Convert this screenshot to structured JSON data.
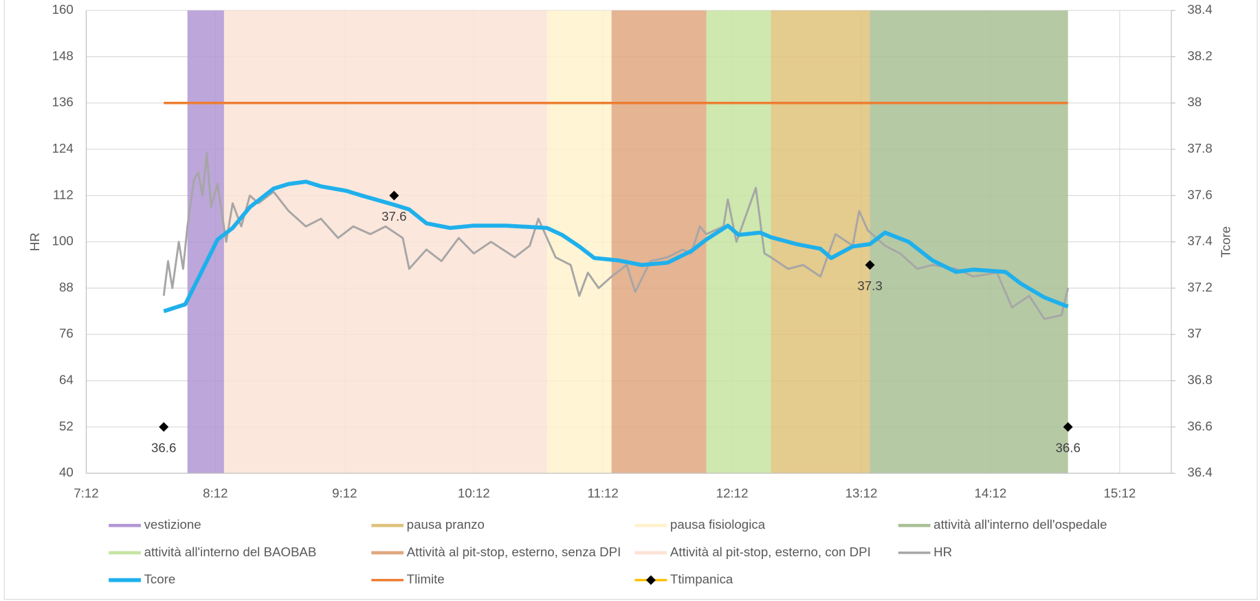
{
  "chart_data": {
    "type": "line",
    "xlim": [
      432,
      936
    ],
    "xticks": [
      {
        "value": 432,
        "label": "7:12"
      },
      {
        "value": 492,
        "label": "8:12"
      },
      {
        "value": 552,
        "label": "9:12"
      },
      {
        "value": 612,
        "label": "10:12"
      },
      {
        "value": 672,
        "label": "11:12"
      },
      {
        "value": 732,
        "label": "12:12"
      },
      {
        "value": 792,
        "label": "13:12"
      },
      {
        "value": 852,
        "label": "14:12"
      },
      {
        "value": 912,
        "label": "15:12"
      }
    ],
    "ylabel": "HR",
    "ylim": [
      40,
      160
    ],
    "yticks": [
      40,
      52,
      64,
      76,
      88,
      100,
      112,
      124,
      136,
      148,
      160
    ],
    "y2label": "Tcore",
    "y2lim": [
      36.4,
      38.4
    ],
    "y2ticks": [
      36.4,
      36.6,
      36.8,
      37,
      37.2,
      37.4,
      37.6,
      37.8,
      38,
      38.2,
      38.4
    ],
    "grid": true,
    "legend": "bottom",
    "bands": [
      {
        "name": "vestizione",
        "color": "#b296d4",
        "start": 479,
        "end": 496
      },
      {
        "name": "pausa pranzo",
        "color": "#dfc27a",
        "start": 750,
        "end": 796
      },
      {
        "name": "pausa fisiologica",
        "color": "#fff2cc",
        "start": 646,
        "end": 676
      },
      {
        "name": "attività all'interno dell'ospedale",
        "color": "#a9bf95",
        "start": 796,
        "end": 888
      },
      {
        "name": "attività all'interno del BAOBAB",
        "color": "#c5e4a1",
        "start": 720,
        "end": 750
      },
      {
        "name": "Attività al pit-stop, esterno, senza DPI",
        "color": "#e0a77f",
        "start": 676,
        "end": 720
      },
      {
        "name": "Attività al pit-stop, esterno, con DPI",
        "color": "#fbe3d6",
        "start": 496,
        "end": 646
      }
    ],
    "series": [
      {
        "name": "HR",
        "color": "#a6a6a6",
        "axis": "y",
        "x": [
          468,
          470,
          472,
          475,
          477,
          479,
          482,
          484,
          486,
          488,
          490,
          493,
          497,
          500,
          504,
          508,
          512,
          519,
          526,
          534,
          541,
          549,
          556,
          564,
          571,
          579,
          582,
          590,
          597,
          605,
          612,
          620,
          631,
          638,
          642,
          650,
          657,
          661,
          665,
          670,
          676,
          683,
          687,
          694,
          702,
          709,
          713,
          717,
          720,
          728,
          730,
          734,
          743,
          747,
          750,
          758,
          765,
          773,
          780,
          788,
          791,
          795,
          803,
          810,
          818,
          825,
          836,
          844,
          855,
          862,
          870,
          877,
          885,
          888
        ],
        "values": [
          86,
          95,
          88,
          100,
          93,
          104,
          116,
          118,
          112,
          123,
          109,
          115,
          100,
          110,
          104,
          112,
          110,
          113,
          108,
          104,
          106,
          101,
          104,
          102,
          104,
          101,
          93,
          98,
          95,
          101,
          97,
          100,
          96,
          99,
          106,
          96,
          94,
          86,
          92,
          88,
          91,
          94,
          87,
          95,
          96,
          98,
          97,
          104,
          102,
          104,
          111,
          100,
          114,
          97,
          96,
          93,
          94,
          91,
          102,
          99,
          108,
          103,
          99,
          97,
          93,
          94,
          93,
          91,
          92,
          83,
          86,
          80,
          81,
          88
        ]
      },
      {
        "name": "Tcore",
        "color": "#1fb0ec",
        "axis": "y2",
        "x": [
          468,
          478,
          485,
          493,
          500,
          508,
          519,
          526,
          534,
          541,
          553,
          560,
          575,
          582,
          590,
          601,
          612,
          627,
          646,
          653,
          661,
          668,
          679,
          690,
          702,
          713,
          720,
          730,
          735,
          745,
          750,
          762,
          773,
          778,
          788,
          796,
          803,
          814,
          825,
          836,
          844,
          859,
          866,
          877,
          888
        ],
        "values": [
          37.1,
          37.13,
          37.26,
          37.41,
          37.46,
          37.55,
          37.63,
          37.65,
          37.66,
          37.64,
          37.62,
          37.6,
          37.56,
          37.54,
          37.48,
          37.46,
          37.47,
          37.47,
          37.46,
          37.43,
          37.38,
          37.33,
          37.32,
          37.3,
          37.31,
          37.36,
          37.41,
          37.47,
          37.43,
          37.44,
          37.42,
          37.39,
          37.37,
          37.33,
          37.38,
          37.39,
          37.44,
          37.4,
          37.32,
          37.27,
          37.28,
          37.27,
          37.22,
          37.16,
          37.12
        ]
      },
      {
        "name": "Tlimite",
        "color": "#ed7d31",
        "axis": "y2",
        "x": [
          468,
          888
        ],
        "values": [
          38,
          38
        ]
      },
      {
        "name": "Ttimpanica",
        "color": "#ffc000",
        "marker_color": "#000000",
        "axis": "y2",
        "markers_only": true,
        "data_labels": true,
        "x": [
          468,
          575,
          796,
          888
        ],
        "values": [
          36.6,
          37.6,
          37.3,
          36.6
        ]
      }
    ]
  }
}
